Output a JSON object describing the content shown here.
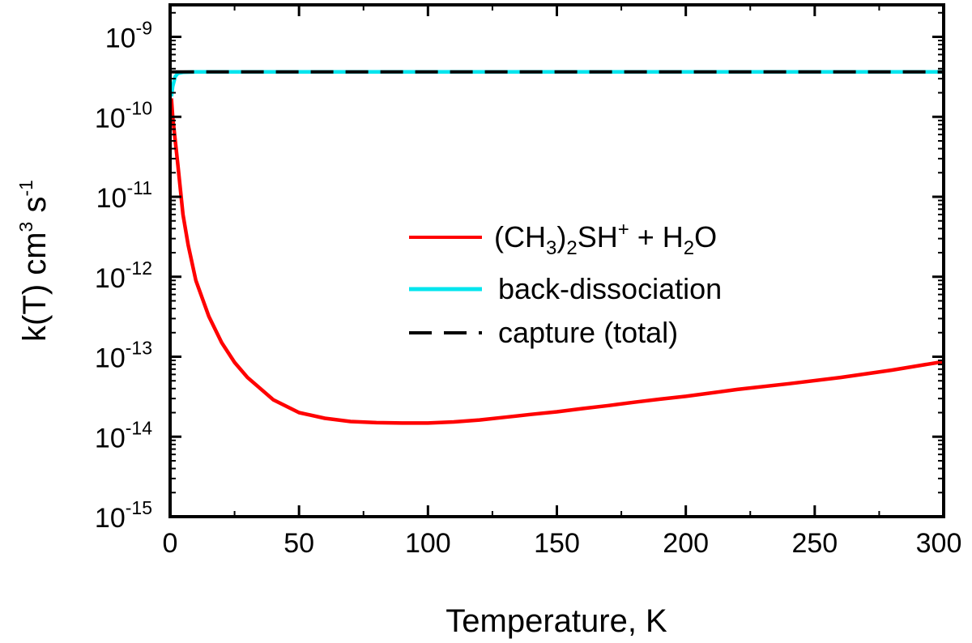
{
  "chart_data": {
    "type": "line",
    "title": "",
    "xlabel": "Temperature, K",
    "ylabel": {
      "base": "k(T) cm",
      "exp1": "3",
      "mid": " s",
      "exp2": "-1"
    },
    "xlim": [
      0,
      300
    ],
    "ylim_log10": [
      -15,
      -8.6
    ],
    "x_ticks": [
      "0",
      "50",
      "100",
      "150",
      "200",
      "250",
      "300"
    ],
    "x_tick_values": [
      0,
      50,
      100,
      150,
      200,
      250,
      300
    ],
    "y_ticks": [
      {
        "value": -9,
        "base": "10",
        "exp": "-9"
      },
      {
        "value": -10,
        "base": "10",
        "exp": "-10"
      },
      {
        "value": -11,
        "base": "10",
        "exp": "-11"
      },
      {
        "value": -12,
        "base": "10",
        "exp": "-12"
      },
      {
        "value": -13,
        "base": "10",
        "exp": "-13"
      },
      {
        "value": -14,
        "base": "10",
        "exp": "-14"
      },
      {
        "value": -15,
        "base": "10",
        "exp": "-15"
      }
    ],
    "grid": false,
    "legend_position": "center-right",
    "series": [
      {
        "name": "(CH3)2SH+ + H2O",
        "legend_parts": [
          "(CH",
          "3",
          ")",
          "2",
          "SH",
          "+",
          " + H",
          "2",
          "O"
        ],
        "color": "#ff0000",
        "style": "solid",
        "x": [
          0.5,
          1,
          2,
          3,
          5,
          7,
          10,
          15,
          20,
          25,
          30,
          40,
          50,
          60,
          70,
          80,
          90,
          100,
          110,
          120,
          130,
          140,
          150,
          160,
          170,
          180,
          190,
          200,
          220,
          240,
          260,
          280,
          300
        ],
        "y": [
          1.7e-10,
          1e-10,
          5e-11,
          2.5e-11,
          6e-12,
          2.5e-12,
          9e-13,
          3.2e-13,
          1.5e-13,
          8.5e-14,
          5.5e-14,
          2.9e-14,
          2e-14,
          1.7e-14,
          1.55e-14,
          1.5e-14,
          1.48e-14,
          1.48e-14,
          1.53e-14,
          1.62e-14,
          1.75e-14,
          1.9e-14,
          2.05e-14,
          2.25e-14,
          2.45e-14,
          2.7e-14,
          2.95e-14,
          3.2e-14,
          3.9e-14,
          4.6e-14,
          5.5e-14,
          6.8e-14,
          8.7e-14
        ]
      },
      {
        "name": "back-dissociation",
        "legend_parts": [
          "back-dissociation"
        ],
        "color": "#00e5ee",
        "style": "solid",
        "x": [
          0.5,
          1,
          2,
          3,
          5,
          10,
          20,
          50,
          100,
          150,
          200,
          250,
          300
        ],
        "y": [
          1.8e-10,
          2.4e-10,
          3.2e-10,
          3.5e-10,
          3.6e-10,
          3.65e-10,
          3.65e-10,
          3.65e-10,
          3.65e-10,
          3.65e-10,
          3.65e-10,
          3.65e-10,
          3.65e-10
        ]
      },
      {
        "name": "capture (total)",
        "legend_parts": [
          "capture (total)"
        ],
        "color": "#000000",
        "style": "dashed",
        "x": [
          0.5,
          300
        ],
        "y": [
          3.65e-10,
          3.65e-10
        ]
      }
    ]
  }
}
